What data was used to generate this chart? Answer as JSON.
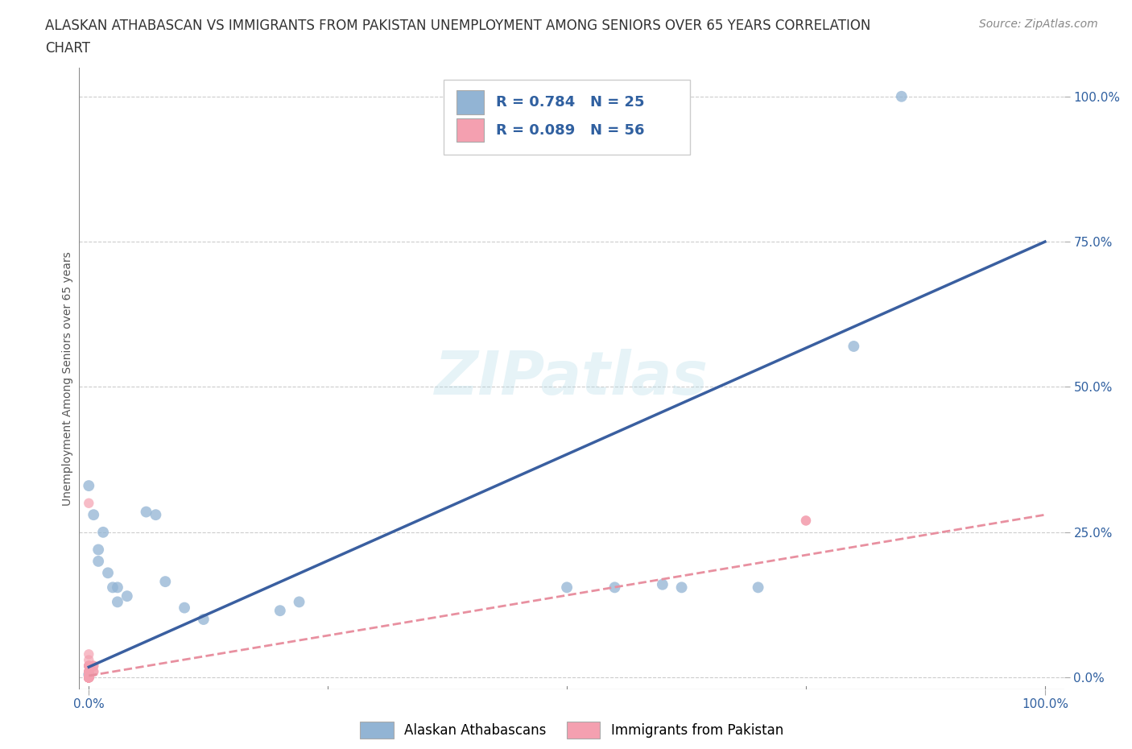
{
  "title_line1": "ALASKAN ATHABASCAN VS IMMIGRANTS FROM PAKISTAN UNEMPLOYMENT AMONG SENIORS OVER 65 YEARS CORRELATION",
  "title_line2": "CHART",
  "source_text": "Source: ZipAtlas.com",
  "ylabel": "Unemployment Among Seniors over 65 years",
  "watermark": "ZIPatlas",
  "background_color": "#ffffff",
  "plot_background": "#ffffff",
  "grid_color": "#cccccc",
  "blue_R": 0.784,
  "blue_N": 25,
  "pink_R": 0.089,
  "pink_N": 56,
  "blue_color": "#92b4d4",
  "pink_color": "#f4a0b0",
  "blue_line_color": "#3a5fa0",
  "pink_line_color": "#e890a0",
  "blue_points_x": [
    0.0,
    0.0,
    0.005,
    0.01,
    0.01,
    0.015,
    0.02,
    0.025,
    0.03,
    0.03,
    0.04,
    0.06,
    0.07,
    0.08,
    0.1,
    0.12,
    0.2,
    0.22,
    0.5,
    0.55,
    0.6,
    0.62,
    0.7,
    0.8,
    0.85
  ],
  "blue_points_y": [
    0.005,
    0.33,
    0.28,
    0.22,
    0.2,
    0.25,
    0.18,
    0.155,
    0.155,
    0.13,
    0.14,
    0.285,
    0.28,
    0.165,
    0.12,
    0.1,
    0.115,
    0.13,
    0.155,
    0.155,
    0.16,
    0.155,
    0.155,
    0.57,
    1.0
  ],
  "pink_points_x": [
    0.0,
    0.0,
    0.0,
    0.0,
    0.0,
    0.0,
    0.0,
    0.0,
    0.0,
    0.0,
    0.0,
    0.0,
    0.0,
    0.0,
    0.0,
    0.0,
    0.0,
    0.0,
    0.0,
    0.0,
    0.0,
    0.0,
    0.0,
    0.0,
    0.0,
    0.0,
    0.0,
    0.0,
    0.0,
    0.0,
    0.0,
    0.0,
    0.0,
    0.0,
    0.0,
    0.0,
    0.0,
    0.0,
    0.0,
    0.0,
    0.0,
    0.0,
    0.0,
    0.0,
    0.0,
    0.0,
    0.0,
    0.0,
    0.0,
    0.0,
    0.005,
    0.005,
    0.005,
    0.005,
    0.75,
    0.75
  ],
  "pink_points_y": [
    0.0,
    0.0,
    0.0,
    0.0,
    0.0,
    0.0,
    0.0,
    0.0,
    0.0,
    0.0,
    0.0,
    0.0,
    0.0,
    0.0,
    0.0,
    0.0,
    0.0,
    0.0,
    0.0,
    0.0,
    0.0,
    0.0,
    0.0,
    0.0,
    0.0,
    0.0,
    0.0,
    0.0,
    0.0,
    0.0,
    0.0,
    0.0,
    0.0,
    0.0,
    0.0,
    0.0,
    0.0,
    0.0,
    0.3,
    0.04,
    0.03,
    0.02,
    0.02,
    0.02,
    0.02,
    0.01,
    0.01,
    0.01,
    0.01,
    0.005,
    0.02,
    0.02,
    0.01,
    0.01,
    0.27,
    0.27
  ],
  "blue_line_x0": 0.0,
  "blue_line_y0": 0.018,
  "blue_line_x1": 1.0,
  "blue_line_y1": 0.75,
  "pink_line_x0": 0.0,
  "pink_line_y0": 0.003,
  "pink_line_x1": 1.0,
  "pink_line_y1": 0.28,
  "ytick_labels": [
    "0.0%",
    "25.0%",
    "50.0%",
    "75.0%",
    "100.0%"
  ],
  "ytick_values": [
    0.0,
    0.25,
    0.5,
    0.75,
    1.0
  ],
  "xtick_labels": [
    "0.0%",
    "100.0%"
  ],
  "xtick_values": [
    0.0,
    1.0
  ],
  "legend_blue_label": "Alaskan Athabascans",
  "legend_pink_label": "Immigrants from Pakistan",
  "title_fontsize": 12,
  "axis_label_fontsize": 10,
  "tick_fontsize": 11,
  "legend_fontsize": 12,
  "source_fontsize": 10,
  "stat_fontsize": 13
}
